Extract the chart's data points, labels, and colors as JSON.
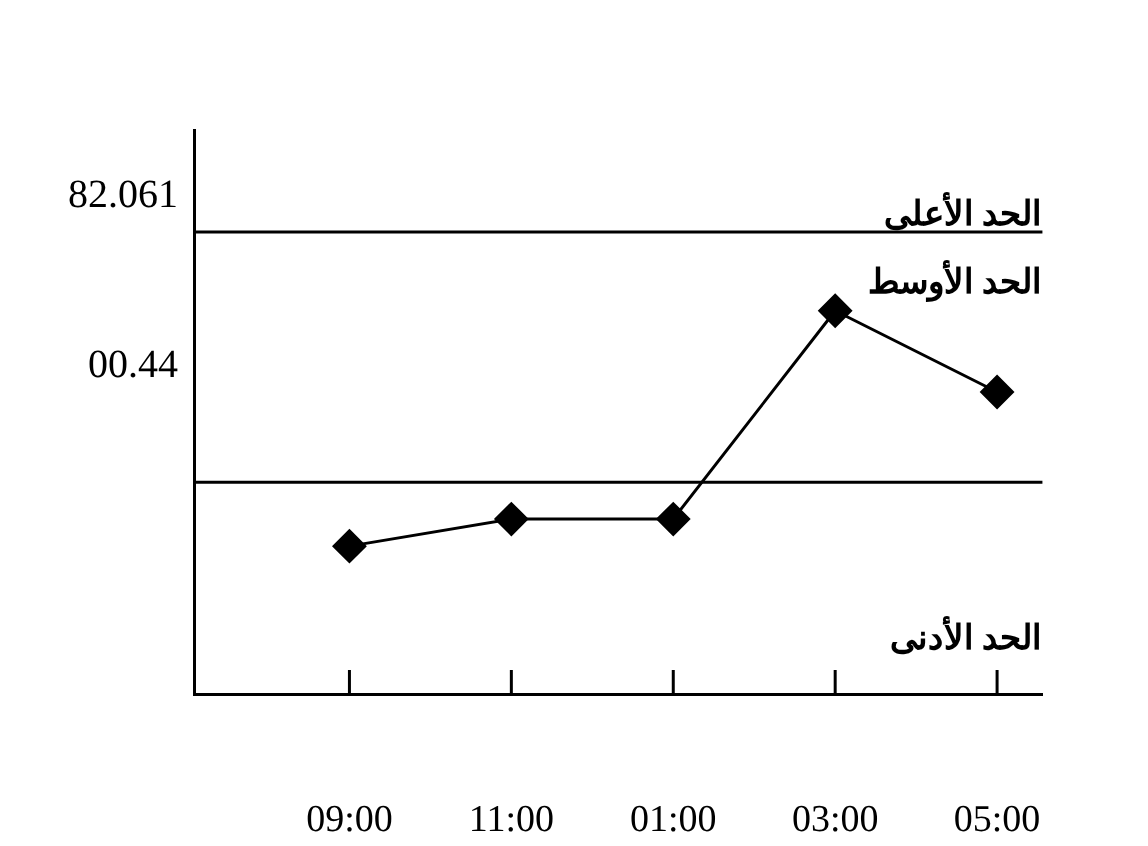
{
  "chart_data": {
    "type": "line",
    "categories": [
      "09:00",
      "11:00",
      "01:00",
      "03:00",
      "05:00"
    ],
    "series": [
      {
        "color": "#000000",
        "values": [
          -86,
          -73,
          -73,
          27,
          -12
        ]
      }
    ],
    "ylim": [
      -157.0,
      113.8
    ],
    "yticks": [
      82.061,
      {
        "value": 0.44,
        "label": "00.44"
      }
    ],
    "ref_lines": [
      {
        "axis": "y",
        "value": 64.8,
        "color": "#000000"
      },
      {
        "axis": "y",
        "value": -55.3,
        "color": "#000000"
      }
    ],
    "annotations": [
      "الحد الأعلى",
      "الحد الأوسط",
      "الحد الأدنى"
    ],
    "marker": "diamond",
    "line_style": "solid",
    "grid": false,
    "legend": false
  }
}
